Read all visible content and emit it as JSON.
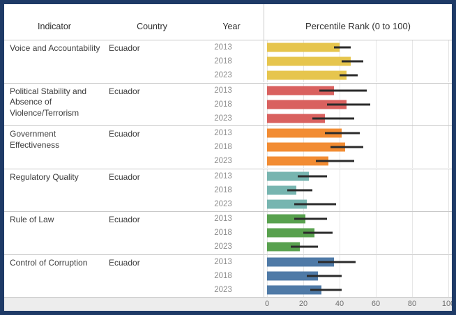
{
  "frame": {
    "border_color": "#1e3a66",
    "background": "#ffffff"
  },
  "header": {
    "indicator": "Indicator",
    "country": "Country",
    "year": "Year",
    "percentile": "Percentile Rank (0 to 100)"
  },
  "chart_data": {
    "type": "bar",
    "orientation": "horizontal",
    "title": "Percentile Rank (0 to 100)",
    "xlim": [
      0,
      100
    ],
    "x_ticks": [
      "0",
      "20",
      "40",
      "60",
      "80",
      "100"
    ],
    "grid": true,
    "error_bars": true,
    "error_bar_color": "#2b2b2b",
    "country": "Ecuador",
    "years": [
      "2013",
      "2018",
      "2023"
    ],
    "groups": [
      {
        "indicator": "Voice and Accountability",
        "country": "Ecuador",
        "color": "#e6c54d",
        "bars": [
          {
            "year": "2013",
            "value": 40,
            "ci_low": 37,
            "ci_high": 46
          },
          {
            "year": "2018",
            "value": 46,
            "ci_low": 41,
            "ci_high": 53
          },
          {
            "year": "2023",
            "value": 44,
            "ci_low": 40,
            "ci_high": 50
          }
        ]
      },
      {
        "indicator": "Political Stability and Absence of Violence/Terrorism",
        "country": "Ecuador",
        "color": "#d9615f",
        "bars": [
          {
            "year": "2013",
            "value": 37,
            "ci_low": 29,
            "ci_high": 55
          },
          {
            "year": "2018",
            "value": 44,
            "ci_low": 33,
            "ci_high": 57
          },
          {
            "year": "2023",
            "value": 32,
            "ci_low": 25,
            "ci_high": 48
          }
        ]
      },
      {
        "indicator": "Government Effectiveness",
        "country": "Ecuador",
        "color": "#f28c33",
        "bars": [
          {
            "year": "2013",
            "value": 41,
            "ci_low": 32,
            "ci_high": 51
          },
          {
            "year": "2018",
            "value": 43,
            "ci_low": 35,
            "ci_high": 53
          },
          {
            "year": "2023",
            "value": 34,
            "ci_low": 27,
            "ci_high": 48
          }
        ]
      },
      {
        "indicator": "Regulatory Quality",
        "country": "Ecuador",
        "color": "#77b5b0",
        "bars": [
          {
            "year": "2013",
            "value": 23,
            "ci_low": 17,
            "ci_high": 33
          },
          {
            "year": "2018",
            "value": 16,
            "ci_low": 11,
            "ci_high": 25
          },
          {
            "year": "2023",
            "value": 22,
            "ci_low": 15,
            "ci_high": 38
          }
        ]
      },
      {
        "indicator": "Rule of Law",
        "country": "Ecuador",
        "color": "#58a14e",
        "bars": [
          {
            "year": "2013",
            "value": 21,
            "ci_low": 15,
            "ci_high": 33
          },
          {
            "year": "2018",
            "value": 26,
            "ci_low": 20,
            "ci_high": 36
          },
          {
            "year": "2023",
            "value": 18,
            "ci_low": 13,
            "ci_high": 28
          }
        ]
      },
      {
        "indicator": "Control of Corruption",
        "country": "Ecuador",
        "color": "#4f7aa7",
        "bars": [
          {
            "year": "2013",
            "value": 37,
            "ci_low": 28,
            "ci_high": 49
          },
          {
            "year": "2018",
            "value": 28,
            "ci_low": 22,
            "ci_high": 41
          },
          {
            "year": "2023",
            "value": 30,
            "ci_low": 24,
            "ci_high": 41
          }
        ]
      }
    ]
  }
}
